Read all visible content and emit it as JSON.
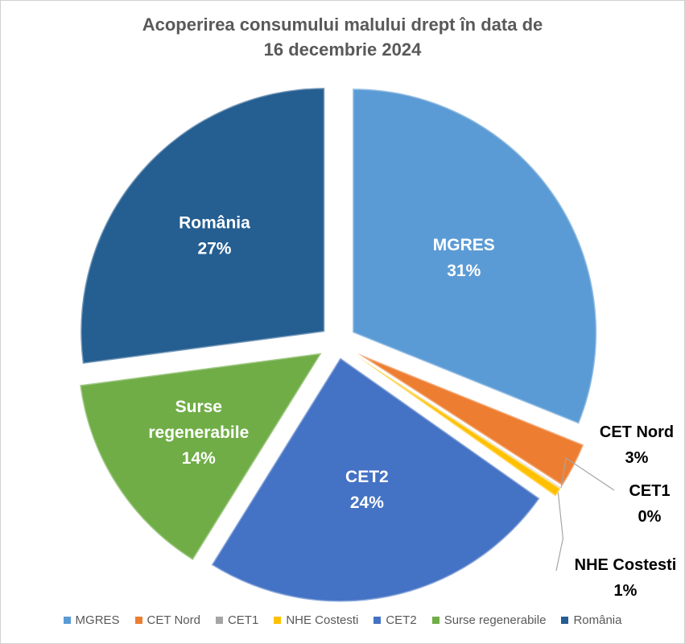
{
  "chart_data": {
    "type": "pie",
    "title": "Acoperirea consumului malului drept în data de 16 decembrie 2024",
    "title_lines": [
      "Acoperirea consumului malului drept în data de",
      "16 decembrie 2024"
    ],
    "slices": [
      {
        "label": "MGRES",
        "value": 31,
        "pct_label": "31%",
        "color": "#5B9BD5",
        "label_inside": true
      },
      {
        "label": "CET Nord",
        "value": 3,
        "pct_label": "3%",
        "color": "#ED7D31",
        "label_inside": false
      },
      {
        "label": "CET1",
        "value": 0.05,
        "pct_label": "0%",
        "color": "#A5A5A5",
        "label_inside": false
      },
      {
        "label": "NHE Costesti",
        "value": 0.6,
        "pct_label": "1%",
        "color": "#FFC000",
        "label_inside": false
      },
      {
        "label": "CET2",
        "value": 24,
        "pct_label": "24%",
        "color": "#4472C4",
        "label_inside": true
      },
      {
        "label": "Surse regenerabile",
        "label_lines": [
          "Surse",
          "regenerabile"
        ],
        "value": 14,
        "pct_label": "14%",
        "color": "#70AD47",
        "label_inside": true
      },
      {
        "label": "România",
        "value": 27,
        "pct_label": "27%",
        "color": "#255E91",
        "label_inside": true
      }
    ],
    "legend_position": "bottom"
  }
}
